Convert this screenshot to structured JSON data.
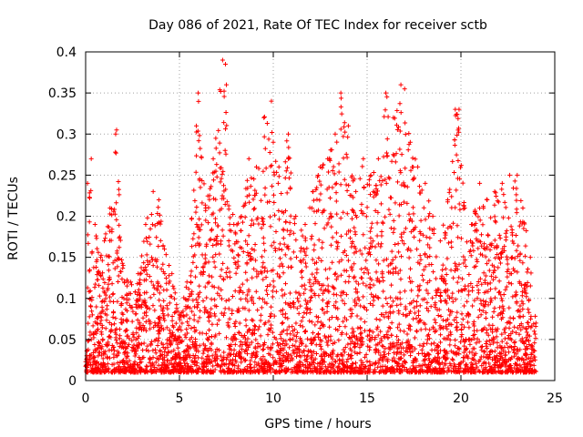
{
  "chart_data": {
    "type": "scatter",
    "title": "Day 086 of 2021, Rate Of TEC Index for receiver sctb",
    "xlabel": "GPS time / hours",
    "ylabel": "ROTI / TECUs",
    "xlim": [
      0,
      25
    ],
    "ylim": [
      0,
      0.4
    ],
    "x_ticks": [
      "0",
      "5",
      "10",
      "15",
      "20",
      "25"
    ],
    "y_ticks": [
      "0",
      "0.05",
      "0.1",
      "0.15",
      "0.2",
      "0.25",
      "0.3",
      "0.35",
      "0.4"
    ],
    "grid": true,
    "marker": "+",
    "color": "#ff0000",
    "series": [
      {
        "points_description": "dense scatter of ROTI values sampled across 0–24 h",
        "x": [
          0.1,
          0.3,
          0.5,
          0.8,
          1.0,
          1.3,
          1.6,
          1.65,
          2.0,
          2.4,
          2.8,
          3.2,
          3.6,
          3.9,
          4.2,
          4.6,
          5.0,
          5.4,
          5.9,
          6.0,
          6.4,
          6.8,
          7.3,
          7.45,
          7.5,
          7.9,
          8.3,
          8.7,
          9.1,
          9.5,
          9.9,
          10.0,
          10.3,
          10.8,
          11.2,
          11.7,
          12.1,
          12.5,
          12.9,
          13.3,
          13.6,
          14.0,
          14.4,
          14.8,
          15.2,
          15.6,
          16.0,
          16.4,
          16.8,
          17.0,
          17.3,
          17.7,
          18.1,
          18.5,
          18.9,
          19.3,
          19.7,
          19.9,
          20.2,
          20.6,
          21.0,
          21.4,
          21.8,
          22.2,
          22.6,
          23.0,
          23.3,
          23.7,
          24.0
        ],
        "y": [
          0.24,
          0.27,
          0.19,
          0.15,
          0.17,
          0.21,
          0.3,
          0.305,
          0.14,
          0.12,
          0.13,
          0.19,
          0.23,
          0.22,
          0.16,
          0.13,
          0.08,
          0.12,
          0.31,
          0.35,
          0.21,
          0.27,
          0.39,
          0.385,
          0.36,
          0.19,
          0.2,
          0.27,
          0.26,
          0.32,
          0.34,
          0.29,
          0.26,
          0.3,
          0.2,
          0.19,
          0.23,
          0.26,
          0.27,
          0.3,
          0.35,
          0.31,
          0.23,
          0.27,
          0.25,
          0.27,
          0.35,
          0.32,
          0.36,
          0.355,
          0.29,
          0.26,
          0.24,
          0.2,
          0.17,
          0.22,
          0.33,
          0.33,
          0.21,
          0.19,
          0.24,
          0.22,
          0.23,
          0.24,
          0.25,
          0.25,
          0.21,
          0.15,
          0.07
        ]
      }
    ]
  }
}
